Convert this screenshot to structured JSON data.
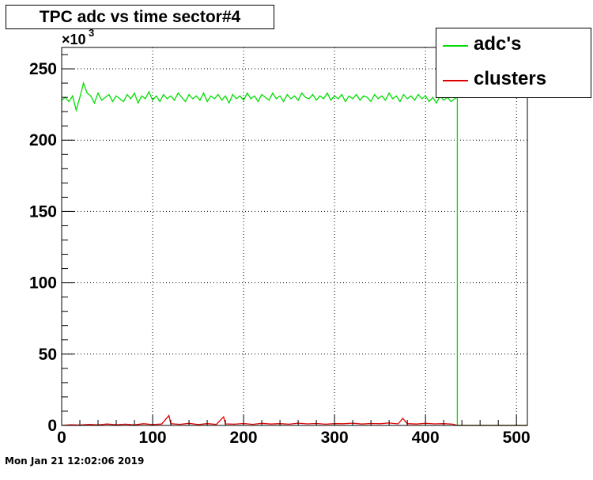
{
  "chart_data": {
    "type": "line",
    "title": "TPC adc vs time sector#4",
    "y_exponent_label": "×10",
    "y_exponent_power": "3",
    "xlim": [
      0,
      512
    ],
    "ylim": [
      0,
      265
    ],
    "x_ticks": [
      0,
      100,
      200,
      300,
      400,
      500
    ],
    "y_ticks": [
      0,
      50,
      100,
      150,
      200,
      250
    ],
    "grid": true,
    "legend_position": "top-right",
    "series": [
      {
        "name": "adc's",
        "color": "#00dd00",
        "x_start": 0,
        "x_end": 435,
        "level": 230,
        "points": [
          [
            0,
            228
          ],
          [
            4,
            230
          ],
          [
            8,
            227
          ],
          [
            12,
            231
          ],
          [
            16,
            221
          ],
          [
            20,
            230
          ],
          [
            24,
            240
          ],
          [
            28,
            233
          ],
          [
            32,
            231
          ],
          [
            36,
            226
          ],
          [
            40,
            233
          ],
          [
            44,
            228
          ],
          [
            48,
            230
          ],
          [
            52,
            232
          ],
          [
            56,
            227
          ],
          [
            60,
            231
          ],
          [
            64,
            229
          ],
          [
            68,
            227
          ],
          [
            72,
            232
          ],
          [
            76,
            229
          ],
          [
            80,
            233
          ],
          [
            84,
            226
          ],
          [
            88,
            231
          ],
          [
            92,
            229
          ],
          [
            96,
            234
          ],
          [
            100,
            228
          ],
          [
            104,
            231
          ],
          [
            108,
            227
          ],
          [
            112,
            232
          ],
          [
            116,
            229
          ],
          [
            120,
            231
          ],
          [
            124,
            228
          ],
          [
            128,
            233
          ],
          [
            132,
            230
          ],
          [
            136,
            227
          ],
          [
            140,
            232
          ],
          [
            144,
            229
          ],
          [
            148,
            231
          ],
          [
            152,
            228
          ],
          [
            156,
            233
          ],
          [
            160,
            227
          ],
          [
            164,
            231
          ],
          [
            168,
            229
          ],
          [
            172,
            232
          ],
          [
            176,
            228
          ],
          [
            180,
            231
          ],
          [
            184,
            226
          ],
          [
            188,
            232
          ],
          [
            192,
            229
          ],
          [
            196,
            231
          ],
          [
            200,
            228
          ],
          [
            204,
            233
          ],
          [
            208,
            229
          ],
          [
            212,
            231
          ],
          [
            216,
            227
          ],
          [
            220,
            232
          ],
          [
            224,
            230
          ],
          [
            228,
            228
          ],
          [
            232,
            233
          ],
          [
            236,
            229
          ],
          [
            240,
            231
          ],
          [
            244,
            227
          ],
          [
            248,
            232
          ],
          [
            252,
            229
          ],
          [
            256,
            231
          ],
          [
            260,
            228
          ],
          [
            264,
            233
          ],
          [
            268,
            230
          ],
          [
            272,
            229
          ],
          [
            276,
            232
          ],
          [
            280,
            228
          ],
          [
            284,
            231
          ],
          [
            288,
            229
          ],
          [
            292,
            233
          ],
          [
            296,
            228
          ],
          [
            300,
            231
          ],
          [
            304,
            229
          ],
          [
            308,
            232
          ],
          [
            312,
            227
          ],
          [
            316,
            231
          ],
          [
            320,
            229
          ],
          [
            324,
            232
          ],
          [
            328,
            228
          ],
          [
            332,
            231
          ],
          [
            336,
            230
          ],
          [
            340,
            227
          ],
          [
            344,
            232
          ],
          [
            348,
            229
          ],
          [
            352,
            231
          ],
          [
            356,
            228
          ],
          [
            360,
            233
          ],
          [
            364,
            229
          ],
          [
            368,
            231
          ],
          [
            372,
            227
          ],
          [
            376,
            232
          ],
          [
            380,
            229
          ],
          [
            384,
            231
          ],
          [
            388,
            228
          ],
          [
            392,
            232
          ],
          [
            396,
            229
          ],
          [
            400,
            231
          ],
          [
            404,
            227
          ],
          [
            408,
            230
          ],
          [
            412,
            226
          ],
          [
            416,
            231
          ],
          [
            420,
            228
          ],
          [
            424,
            230
          ],
          [
            428,
            227
          ],
          [
            432,
            229
          ],
          [
            435,
            230
          ],
          [
            435,
            0
          ],
          [
            512,
            0
          ]
        ]
      },
      {
        "name": "clusters",
        "color": "#dd0000",
        "points": [
          [
            0,
            0
          ],
          [
            10,
            0.5
          ],
          [
            20,
            0.3
          ],
          [
            30,
            0.8
          ],
          [
            40,
            0.4
          ],
          [
            50,
            1.0
          ],
          [
            60,
            0.5
          ],
          [
            70,
            0.9
          ],
          [
            80,
            0.4
          ],
          [
            90,
            1.2
          ],
          [
            100,
            0.6
          ],
          [
            110,
            1.0
          ],
          [
            118,
            7
          ],
          [
            120,
            1.2
          ],
          [
            130,
            0.8
          ],
          [
            140,
            1.5
          ],
          [
            150,
            0.6
          ],
          [
            160,
            1.3
          ],
          [
            170,
            0.7
          ],
          [
            178,
            6
          ],
          [
            180,
            1.1
          ],
          [
            190,
            0.9
          ],
          [
            200,
            1.4
          ],
          [
            210,
            0.8
          ],
          [
            220,
            1.5
          ],
          [
            230,
            1.0
          ],
          [
            240,
            1.3
          ],
          [
            250,
            0.9
          ],
          [
            260,
            1.6
          ],
          [
            270,
            1.1
          ],
          [
            280,
            1.4
          ],
          [
            290,
            0.9
          ],
          [
            300,
            1.3
          ],
          [
            310,
            1.2
          ],
          [
            320,
            1.6
          ],
          [
            330,
            1.0
          ],
          [
            340,
            1.4
          ],
          [
            350,
            1.2
          ],
          [
            360,
            1.7
          ],
          [
            370,
            1.1
          ],
          [
            375,
            5
          ],
          [
            380,
            1.3
          ],
          [
            390,
            1.0
          ],
          [
            400,
            1.5
          ],
          [
            410,
            1.1
          ],
          [
            420,
            1.3
          ],
          [
            430,
            0.9
          ],
          [
            435,
            0
          ],
          [
            512,
            0
          ]
        ]
      }
    ]
  },
  "footer": {
    "timestamp": "Mon Jan 21 12:02:06 2019"
  }
}
